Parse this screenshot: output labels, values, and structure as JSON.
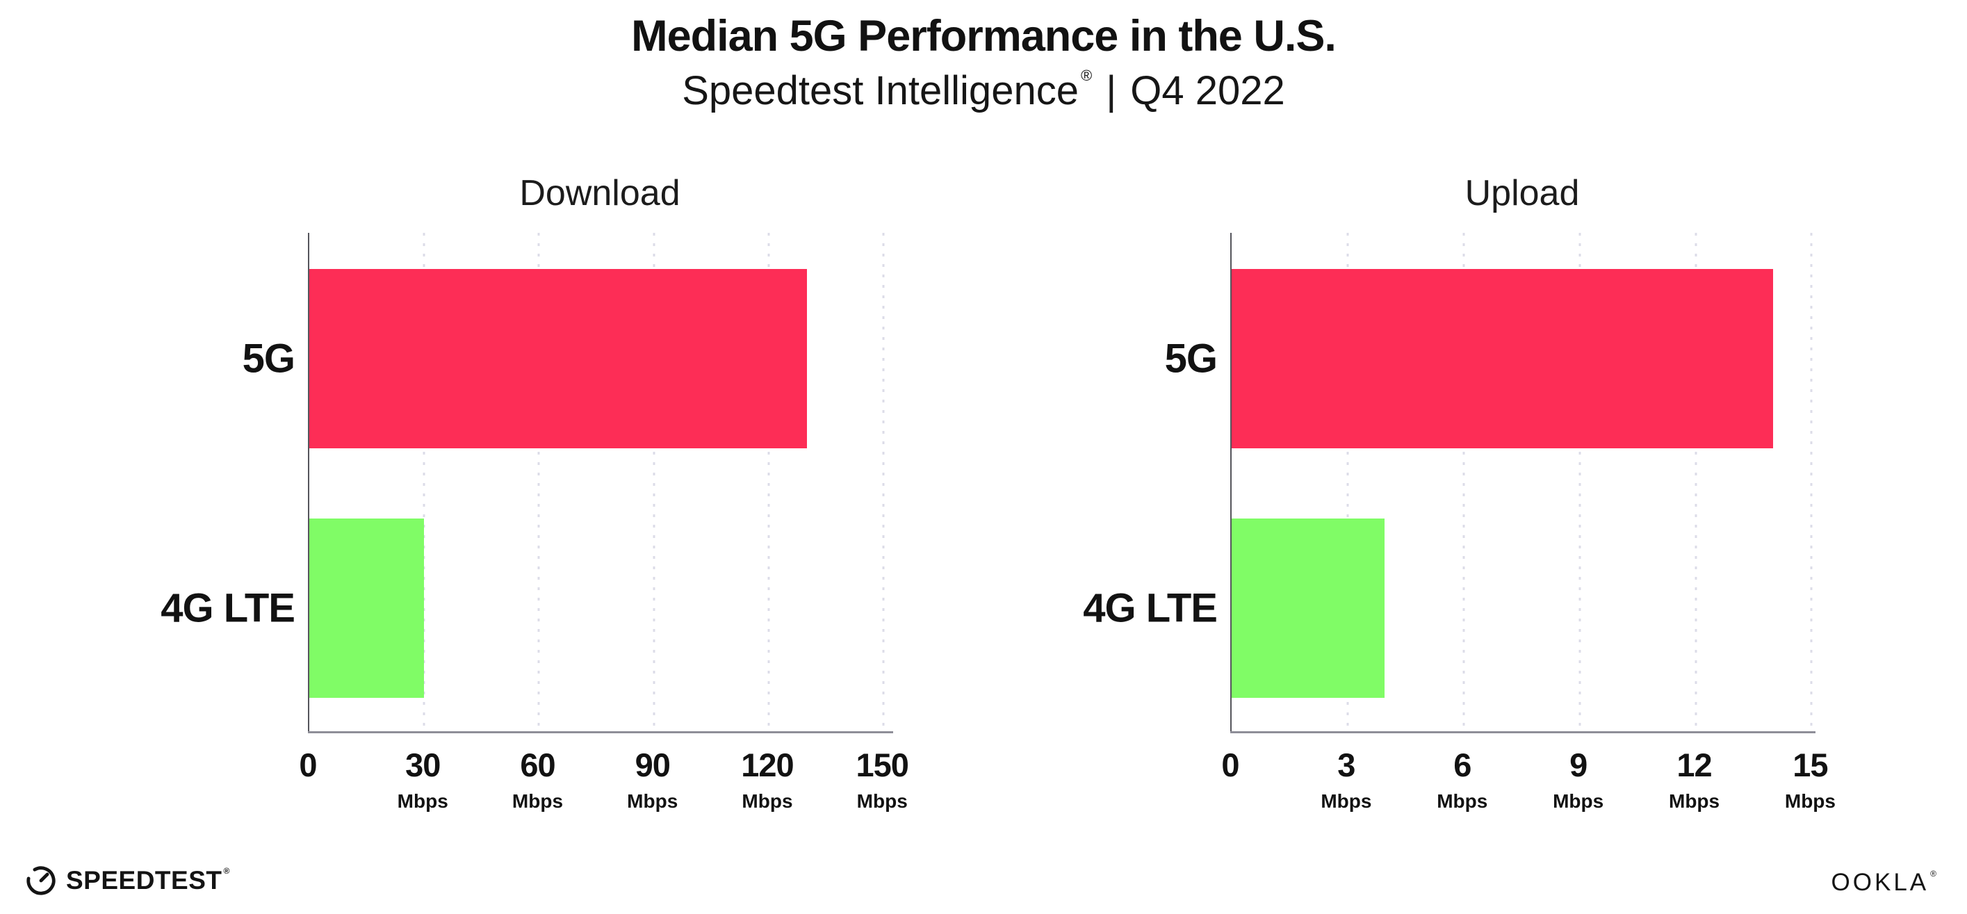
{
  "page": {
    "title": "Median 5G Performance in the U.S.",
    "subtitle": {
      "brand": "Speedtest Intelligence",
      "registered_mark": "®",
      "divider": "|",
      "period": "Q4 2022"
    }
  },
  "colors": {
    "bar_5g": "#FD2D56",
    "bar_4g_lte": "#80FC66",
    "y_axis": "#55555c",
    "x_axis": "#8e8e98",
    "gridline_dots": "#dcdce8",
    "text": "#121212"
  },
  "chart_data": [
    {
      "type": "bar",
      "orientation": "horizontal",
      "title": "Download",
      "categories": [
        "5G",
        "4G LTE"
      ],
      "values": [
        130,
        30
      ],
      "unit": "Mbps",
      "xlabel": "",
      "ylabel": "",
      "xticks": [
        0,
        30,
        60,
        90,
        120,
        150
      ],
      "xlim": [
        0,
        152.5
      ],
      "bar_colors": [
        "#FD2D56",
        "#80FC66"
      ],
      "grid": "vertical-dotted",
      "legend": "none"
    },
    {
      "type": "bar",
      "orientation": "horizontal",
      "title": "Upload",
      "categories": [
        "5G",
        "4G LTE"
      ],
      "values": [
        14,
        3.95
      ],
      "unit": "Mbps",
      "xlabel": "",
      "ylabel": "",
      "xticks": [
        0,
        3,
        6,
        9,
        12,
        15
      ],
      "xlim": [
        0,
        15.1
      ],
      "bar_colors": [
        "#FD2D56",
        "#80FC66"
      ],
      "grid": "vertical-dotted",
      "legend": "none"
    }
  ],
  "footer": {
    "speedtest_logo_text": "SPEEDTEST",
    "speedtest_registered_mark": "®",
    "ookla_logo_text": "OOKLA",
    "ookla_registered_mark": "®"
  }
}
